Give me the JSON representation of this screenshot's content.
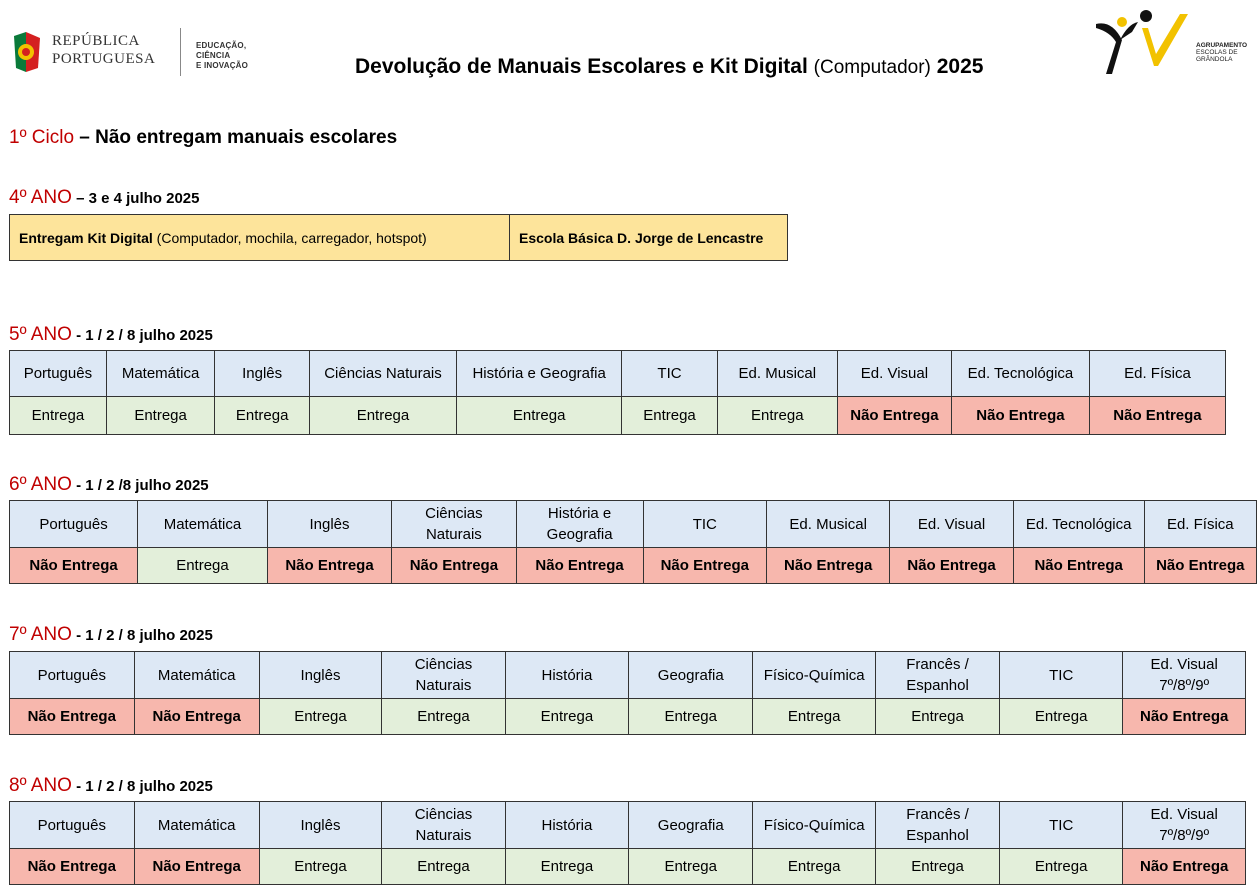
{
  "header": {
    "gov_line1": "REPÚBLICA",
    "gov_line2": "PORTUGUESA",
    "edu_line1": "EDUCAÇÃO, CIÊNCIA",
    "edu_line2": "E INOVAÇÃO",
    "title_main": "Devolução de Manuais Escolares e Kit Digital",
    "title_paren": "(Computador)",
    "title_year": "2025",
    "school_logo_line1": "AGRUPAMENTO",
    "school_logo_line2": "ESCOLAS DE GRÂNDOLA"
  },
  "ciclo1": {
    "label": "1º Ciclo",
    "rest": " – Não entregam manuais escolares"
  },
  "ano4": {
    "label": "4º ANO",
    "dates": " – 3 e 4 julho 2025",
    "kit_bold": "Entregam Kit Digital",
    "kit_rest": " (Computador, mochila, carregador, hotspot)",
    "school": "Escola Básica D. Jorge de Lencastre"
  },
  "ano5": {
    "label": "5º ANO",
    "dates": " - 1 / 2 / 8 julho 2025",
    "subjects": [
      "Português",
      "Matemática",
      "Inglês",
      "Ciências Naturais",
      "História e Geografia",
      "TIC",
      "Ed. Musical",
      "Ed. Visual",
      "Ed. Tecnológica",
      "Ed. Física"
    ],
    "status": [
      "Entrega",
      "Entrega",
      "Entrega",
      "Entrega",
      "Entrega",
      "Entrega",
      "Entrega",
      "Não Entrega",
      "Não Entrega",
      "Não Entrega"
    ]
  },
  "ano6": {
    "label": "6º ANO",
    "dates": " - 1 / 2 /8 julho 2025",
    "subjects": [
      "Português",
      "Matemática",
      "Inglês",
      "Ciências\nNaturais",
      "História e\nGeografia",
      "TIC",
      "Ed. Musical",
      "Ed. Visual",
      "Ed. Tecnológica",
      "Ed. Física"
    ],
    "status": [
      "Não Entrega",
      "Entrega",
      "Não Entrega",
      "Não Entrega",
      "Não Entrega",
      "Não Entrega",
      "Não Entrega",
      "Não Entrega",
      "Não Entrega",
      "Não Entrega"
    ]
  },
  "ano7": {
    "label": "7º ANO",
    "dates": " - 1 / 2 / 8 julho 2025",
    "subjects": [
      "Português",
      "Matemática",
      "Inglês",
      "Ciências\nNaturais",
      "História",
      "Geografia",
      "Físico-Química",
      "Francês /\nEspanhol",
      "TIC",
      "Ed. Visual\n7º/8º/9º"
    ],
    "status": [
      "Não Entrega",
      "Não Entrega",
      "Entrega",
      "Entrega",
      "Entrega",
      "Entrega",
      "Entrega",
      "Entrega",
      "Entrega",
      "Não Entrega"
    ]
  },
  "ano8": {
    "label": "8º ANO",
    "dates": " - 1 / 2 / 8 julho 2025",
    "subjects": [
      "Português",
      "Matemática",
      "Inglês",
      "Ciências\nNaturais",
      "História",
      "Geografia",
      "Físico-Química",
      "Francês /\nEspanhol",
      "TIC",
      "Ed. Visual\n7º/8º/9º"
    ],
    "status": [
      "Não Entrega",
      "Não Entrega",
      "Entrega",
      "Entrega",
      "Entrega",
      "Entrega",
      "Entrega",
      "Entrega",
      "Entrega",
      "Não Entrega"
    ]
  },
  "colors": {
    "header_cell": "#dde8f5",
    "entrega": "#e3efda",
    "nao_entrega": "#f7b7ad",
    "kit": "#fde49b",
    "accent_red": "#c00000"
  }
}
